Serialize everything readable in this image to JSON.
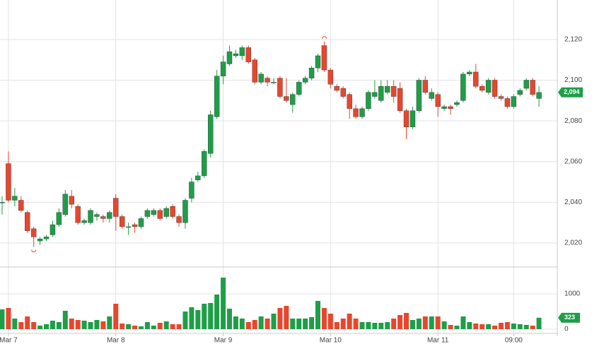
{
  "chart_data": [
    {
      "type": "candlestick",
      "open": [
        2040,
        2059,
        2041,
        2041,
        2035,
        2027,
        2021,
        2022,
        2024,
        2029,
        2034,
        2043,
        2038,
        2030,
        2030,
        2033,
        2033,
        2032,
        2042,
        2033,
        2028,
        2029,
        2028,
        2033,
        2034,
        2036,
        2033,
        2038,
        2033,
        2030,
        2042,
        2051,
        2053,
        2064,
        2082,
        2102,
        2108,
        2112,
        2112,
        2116,
        2110,
        2099,
        2101,
        2099,
        2101,
        2092,
        2088,
        2093,
        2099,
        2101,
        2106,
        2117,
        2105,
        2097,
        2096,
        2093,
        2086,
        2082,
        2086,
        2092,
        2090,
        2094,
        2097,
        2096,
        2085,
        2077,
        2085,
        2100,
        2091,
        2093,
        2086,
        2087,
        2088,
        2090,
        2103,
        2104,
        2097,
        2094,
        2100,
        2092,
        2091,
        2087,
        2093,
        2096,
        2100,
        2091
      ],
      "high": [
        2043,
        2065,
        2047,
        2043,
        2036,
        2028,
        2023,
        2024,
        2031,
        2037,
        2046,
        2046,
        2039,
        2032,
        2037,
        2035,
        2034,
        2036,
        2044,
        2034,
        2030,
        2030,
        2033,
        2037,
        2037,
        2037,
        2038,
        2039,
        2034,
        2042,
        2052,
        2055,
        2066,
        2085,
        2105,
        2112,
        2117,
        2115,
        2117,
        2117,
        2111,
        2104,
        2102,
        2101,
        2102,
        2101,
        2094,
        2100,
        2102,
        2107,
        2113,
        2119,
        2106,
        2098,
        2097,
        2094,
        2088,
        2087,
        2095,
        2100,
        2100,
        2100,
        2100,
        2099,
        2086,
        2087,
        2101,
        2102,
        2096,
        2094,
        2088,
        2088,
        2090,
        2104,
        2105,
        2108,
        2098,
        2101,
        2101,
        2093,
        2092,
        2093,
        2096,
        2101,
        2101,
        2097
      ],
      "low": [
        2034,
        2040,
        2038,
        2035,
        2025,
        2018,
        2019,
        2021,
        2023,
        2028,
        2033,
        2037,
        2029,
        2029,
        2029,
        2031,
        2030,
        2030,
        2026,
        2027,
        2024,
        2025,
        2027,
        2032,
        2033,
        2031,
        2032,
        2032,
        2028,
        2027,
        2040,
        2050,
        2052,
        2062,
        2081,
        2098,
        2107,
        2111,
        2110,
        2108,
        2098,
        2098,
        2097,
        2098,
        2091,
        2089,
        2084,
        2092,
        2098,
        2100,
        2104,
        2104,
        2096,
        2094,
        2091,
        2081,
        2081,
        2081,
        2085,
        2091,
        2089,
        2093,
        2089,
        2084,
        2071,
        2076,
        2084,
        2093,
        2090,
        2082,
        2085,
        2083,
        2087,
        2089,
        2102,
        2096,
        2094,
        2093,
        2091,
        2090,
        2086,
        2086,
        2092,
        2095,
        2092,
        2087
      ],
      "close": [
        2040,
        2041,
        2043,
        2036,
        2026,
        2023,
        2022,
        2023,
        2029,
        2035,
        2044,
        2039,
        2030,
        2031,
        2036,
        2034,
        2032,
        2035,
        2033,
        2028,
        2028,
        2028,
        2032,
        2036,
        2036,
        2032,
        2037,
        2033,
        2030,
        2041,
        2050,
        2053,
        2065,
        2083,
        2102,
        2109,
        2114,
        2113,
        2116,
        2109,
        2099,
        2103,
        2099,
        2099,
        2092,
        2090,
        2093,
        2099,
        2101,
        2106,
        2112,
        2105,
        2098,
        2095,
        2092,
        2086,
        2082,
        2086,
        2094,
        2094,
        2097,
        2097,
        2092,
        2085,
        2077,
        2085,
        2100,
        2094,
        2094,
        2087,
        2087,
        2086,
        2089,
        2103,
        2104,
        2097,
        2095,
        2100,
        2092,
        2091,
        2087,
        2092,
        2095,
        2100,
        2093,
        2094
      ],
      "up_color": "#1e9e48",
      "down_color": "#e8462d",
      "ylim": [
        2008.2,
        2139.4
      ],
      "yticks": [
        {
          "value": 2020,
          "label": "2,020"
        },
        {
          "value": 2040,
          "label": "2,040"
        },
        {
          "value": 2060,
          "label": "2,060"
        },
        {
          "value": 2080,
          "label": "2,080"
        },
        {
          "value": 2100,
          "label": "2,100"
        },
        {
          "value": 2120,
          "label": "2,120"
        }
      ],
      "last_label": "2,094",
      "grid": true
    },
    {
      "type": "bar",
      "categories": [
        null,
        "Mar 7",
        null,
        null,
        null,
        null,
        null,
        null,
        null,
        null,
        null,
        null,
        null,
        null,
        null,
        null,
        null,
        null,
        "Mar 8",
        null,
        null,
        null,
        null,
        null,
        null,
        null,
        null,
        null,
        null,
        null,
        null,
        null,
        null,
        null,
        null,
        "Mar 9",
        null,
        null,
        null,
        null,
        null,
        null,
        null,
        null,
        null,
        null,
        null,
        null,
        null,
        null,
        null,
        null,
        "Mar 10",
        null,
        null,
        null,
        null,
        null,
        null,
        null,
        null,
        null,
        null,
        null,
        null,
        null,
        null,
        null,
        null,
        "Mar 11",
        null,
        null,
        null,
        null,
        null,
        null,
        null,
        null,
        null,
        null,
        null,
        "09:00",
        null,
        null,
        null,
        null
      ],
      "values": [
        560,
        600,
        300,
        200,
        360,
        200,
        100,
        140,
        240,
        200,
        520,
        300,
        260,
        240,
        200,
        260,
        220,
        360,
        720,
        160,
        140,
        100,
        80,
        200,
        100,
        180,
        220,
        140,
        140,
        500,
        620,
        540,
        720,
        740,
        980,
        1460,
        580,
        360,
        300,
        200,
        260,
        360,
        300,
        440,
        600,
        660,
        300,
        300,
        300,
        340,
        800,
        600,
        440,
        200,
        300,
        440,
        300,
        200,
        200,
        180,
        180,
        200,
        300,
        400,
        460,
        260,
        300,
        360,
        360,
        360,
        220,
        120,
        100,
        360,
        200,
        160,
        140,
        140,
        100,
        180,
        200,
        160,
        140,
        120,
        100,
        323
      ],
      "ylim": [
        -80,
        1760
      ],
      "yticks": [
        0,
        1000
      ],
      "last_label": 323,
      "badge_color": "#1e9e48",
      "grid": true
    }
  ]
}
